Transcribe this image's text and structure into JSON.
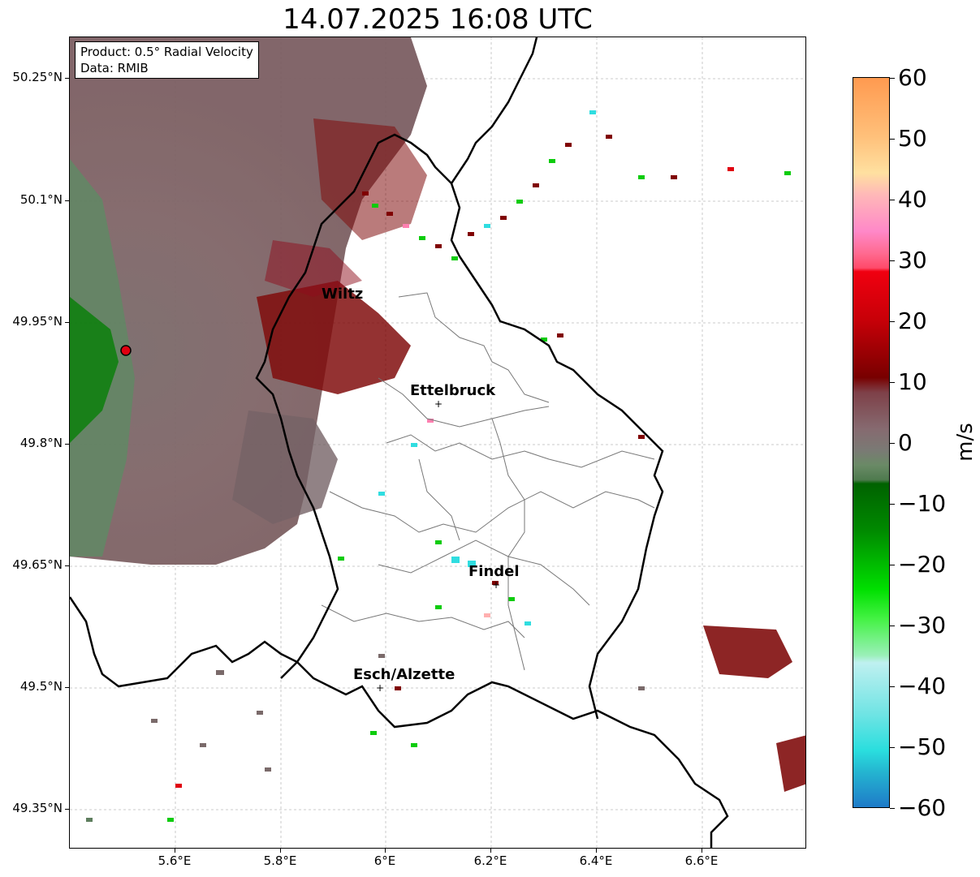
{
  "title": "14.07.2025 16:08 UTC",
  "info": {
    "product": "Product: 0.5° Radial Velocity",
    "data": "Data: RMIB"
  },
  "lat_labels": [
    "50.25°N",
    "50.1°N",
    "49.95°N",
    "49.8°N",
    "49.65°N",
    "49.5°N",
    "49.35°N"
  ],
  "lon_labels": [
    "5.6°E",
    "5.8°E",
    "6°E",
    "6.2°E",
    "6.4°E",
    "6.6°E"
  ],
  "cities": [
    {
      "name": "Wiltz"
    },
    {
      "name": "Ettelbruck"
    },
    {
      "name": "Findel"
    },
    {
      "name": "Esch/Alzette"
    }
  ],
  "colorbar": {
    "unit": "m/s",
    "tick_labels": [
      "60",
      "50",
      "40",
      "30",
      "20",
      "10",
      "0",
      "−10",
      "−20",
      "−30",
      "−40",
      "−50",
      "−60"
    ],
    "min": -60,
    "max": 60,
    "colors": {
      "neg_60_50": "#1f78c8",
      "neg_50_35": "#30dde0",
      "neg_35_25": "#c0f0f0",
      "neg_30_20": "#22ee22",
      "neg_20_5": "#0a8a0a",
      "near_zero": "#7a7a74",
      "pos_5_20": "#800000",
      "pos_20_30": "#e00010",
      "pos_30_45": "#ff80b0",
      "pos_45_60": "#ffa050"
    }
  }
}
